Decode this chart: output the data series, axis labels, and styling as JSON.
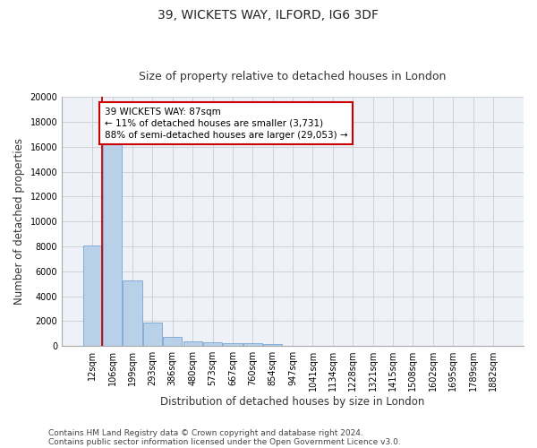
{
  "title1": "39, WICKETS WAY, ILFORD, IG6 3DF",
  "title2": "Size of property relative to detached houses in London",
  "xlabel": "Distribution of detached houses by size in London",
  "ylabel": "Number of detached properties",
  "categories": [
    "12sqm",
    "106sqm",
    "199sqm",
    "293sqm",
    "386sqm",
    "480sqm",
    "573sqm",
    "667sqm",
    "760sqm",
    "854sqm",
    "947sqm",
    "1041sqm",
    "1134sqm",
    "1228sqm",
    "1321sqm",
    "1415sqm",
    "1508sqm",
    "1602sqm",
    "1695sqm",
    "1789sqm",
    "1882sqm"
  ],
  "values": [
    8100,
    16600,
    5300,
    1850,
    700,
    370,
    280,
    220,
    190,
    160,
    0,
    0,
    0,
    0,
    0,
    0,
    0,
    0,
    0,
    0,
    0
  ],
  "bar_color": "#b8d0e8",
  "bar_edge_color": "#6699cc",
  "annotation_box_text": "39 WICKETS WAY: 87sqm\n← 11% of detached houses are smaller (3,731)\n88% of semi-detached houses are larger (29,053) →",
  "ylim": [
    0,
    20000
  ],
  "yticks": [
    0,
    2000,
    4000,
    6000,
    8000,
    10000,
    12000,
    14000,
    16000,
    18000,
    20000
  ],
  "grid_color": "#cccccc",
  "bg_color": "#eef2f8",
  "footnote1": "Contains HM Land Registry data © Crown copyright and database right 2024.",
  "footnote2": "Contains public sector information licensed under the Open Government Licence v3.0.",
  "red_line_color": "#cc0000",
  "annotation_box_color": "#ffffff",
  "annotation_box_edge_color": "#cc0000",
  "title1_fontsize": 10,
  "title2_fontsize": 9,
  "xlabel_fontsize": 8.5,
  "ylabel_fontsize": 8.5,
  "annotation_fontsize": 7.5,
  "tick_fontsize": 7,
  "footnote_fontsize": 6.5
}
